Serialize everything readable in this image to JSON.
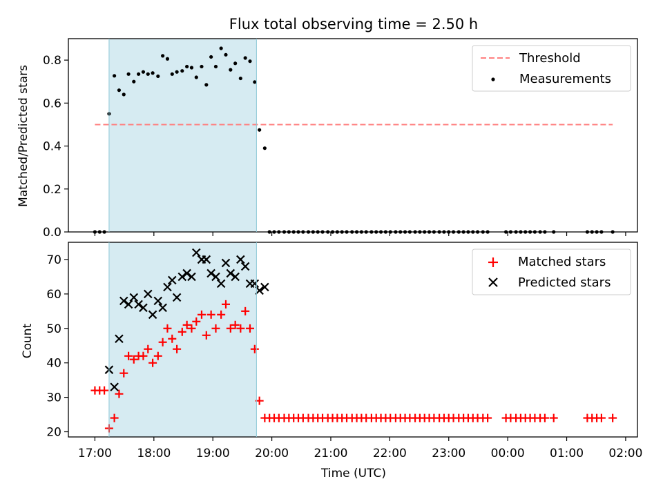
{
  "figure": {
    "title": "Flux total observing time = 2.50 h",
    "xlabel": "Time (UTC)",
    "top_ylabel": "Matched/Predicted stars",
    "bottom_ylabel": "Count",
    "highlight_color": "#add8e6",
    "x_tick_labels": [
      "17:00",
      "18:00",
      "19:00",
      "20:00",
      "21:00",
      "22:00",
      "23:00",
      "00:00",
      "01:00",
      "02:00"
    ]
  },
  "chart_data": [
    {
      "type": "scatter",
      "ylabel": "Matched/Predicted stars",
      "x_unit": "hours since 17:00 UTC",
      "xlim": [
        -0.45,
        9.2
      ],
      "ylim": [
        0,
        0.9
      ],
      "yticks": [
        0.0,
        0.2,
        0.4,
        0.6,
        0.8
      ],
      "ytick_labels": [
        "0.0",
        "0.2",
        "0.4",
        "0.6",
        "0.8"
      ],
      "highlight_span": [
        0.24,
        2.74
      ],
      "threshold": {
        "name": "Threshold",
        "y": 0.5,
        "x_range": [
          0.0,
          8.78
        ],
        "color": "#ff7f7f",
        "style": "dashed"
      },
      "legend": {
        "position": "top-right",
        "entries": [
          "Threshold",
          "Measurements"
        ]
      },
      "series": [
        {
          "name": "Measurements",
          "color": "#000000",
          "points": [
            [
              0.0,
              0.0
            ],
            [
              0.08,
              0.0
            ],
            [
              0.16,
              0.0
            ],
            [
              0.24,
              0.55
            ],
            [
              0.33,
              0.727
            ],
            [
              0.41,
              0.66
            ],
            [
              0.49,
              0.64
            ],
            [
              0.57,
              0.735
            ],
            [
              0.66,
              0.7
            ],
            [
              0.74,
              0.735
            ],
            [
              0.82,
              0.745
            ],
            [
              0.9,
              0.735
            ],
            [
              0.98,
              0.74
            ],
            [
              1.07,
              0.725
            ],
            [
              1.15,
              0.82
            ],
            [
              1.23,
              0.806
            ],
            [
              1.31,
              0.735
            ],
            [
              1.39,
              0.745
            ],
            [
              1.48,
              0.75
            ],
            [
              1.56,
              0.77
            ],
            [
              1.64,
              0.765
            ],
            [
              1.72,
              0.72
            ],
            [
              1.81,
              0.77
            ],
            [
              1.89,
              0.685
            ],
            [
              1.97,
              0.815
            ],
            [
              2.05,
              0.77
            ],
            [
              2.14,
              0.855
            ],
            [
              2.22,
              0.825
            ],
            [
              2.3,
              0.755
            ],
            [
              2.38,
              0.785
            ],
            [
              2.47,
              0.715
            ],
            [
              2.55,
              0.81
            ],
            [
              2.63,
              0.795
            ],
            [
              2.71,
              0.698
            ],
            [
              2.79,
              0.475
            ],
            [
              2.88,
              0.39
            ],
            [
              2.96,
              0.0
            ],
            [
              3.04,
              0.0
            ],
            [
              3.12,
              0.0
            ],
            [
              3.21,
              0.0
            ],
            [
              3.29,
              0.0
            ],
            [
              3.37,
              0.0
            ],
            [
              3.45,
              0.0
            ],
            [
              3.53,
              0.0
            ],
            [
              3.62,
              0.0
            ],
            [
              3.7,
              0.0
            ],
            [
              3.78,
              0.0
            ],
            [
              3.86,
              0.0
            ],
            [
              3.95,
              0.0
            ],
            [
              4.03,
              0.0
            ],
            [
              4.11,
              0.0
            ],
            [
              4.19,
              0.0
            ],
            [
              4.27,
              0.0
            ],
            [
              4.36,
              0.0
            ],
            [
              4.44,
              0.0
            ],
            [
              4.52,
              0.0
            ],
            [
              4.6,
              0.0
            ],
            [
              4.69,
              0.0
            ],
            [
              4.77,
              0.0
            ],
            [
              4.85,
              0.0
            ],
            [
              4.93,
              0.0
            ],
            [
              5.01,
              0.0
            ],
            [
              5.1,
              0.0
            ],
            [
              5.18,
              0.0
            ],
            [
              5.26,
              0.0
            ],
            [
              5.34,
              0.0
            ],
            [
              5.43,
              0.0
            ],
            [
              5.51,
              0.0
            ],
            [
              5.59,
              0.0
            ],
            [
              5.67,
              0.0
            ],
            [
              5.75,
              0.0
            ],
            [
              5.84,
              0.0
            ],
            [
              5.92,
              0.0
            ],
            [
              6.0,
              0.0
            ],
            [
              6.08,
              0.0
            ],
            [
              6.17,
              0.0
            ],
            [
              6.25,
              0.0
            ],
            [
              6.33,
              0.0
            ],
            [
              6.41,
              0.0
            ],
            [
              6.49,
              0.0
            ],
            [
              6.58,
              0.0
            ],
            [
              6.66,
              0.0
            ],
            [
              6.97,
              0.0
            ],
            [
              7.05,
              0.0
            ],
            [
              7.14,
              0.0
            ],
            [
              7.22,
              0.0
            ],
            [
              7.3,
              0.0
            ],
            [
              7.38,
              0.0
            ],
            [
              7.46,
              0.0
            ],
            [
              7.55,
              0.0
            ],
            [
              7.63,
              0.0
            ],
            [
              7.78,
              0.0
            ],
            [
              8.35,
              0.0
            ],
            [
              8.43,
              0.0
            ],
            [
              8.51,
              0.0
            ],
            [
              8.59,
              0.0
            ],
            [
              8.78,
              0.0
            ]
          ]
        }
      ]
    },
    {
      "type": "scatter",
      "xlabel": "Time (UTC)",
      "ylabel": "Count",
      "x_unit": "hours since 17:00 UTC",
      "xlim": [
        -0.45,
        9.2
      ],
      "ylim": [
        18.5,
        75
      ],
      "yticks": [
        20,
        30,
        40,
        50,
        60,
        70
      ],
      "ytick_labels": [
        "20",
        "30",
        "40",
        "50",
        "60",
        "70"
      ],
      "xticks": [
        0,
        1,
        2,
        3,
        4,
        5,
        6,
        7,
        8,
        9
      ],
      "xtick_labels": [
        "17:00",
        "18:00",
        "19:00",
        "20:00",
        "21:00",
        "22:00",
        "23:00",
        "00:00",
        "01:00",
        "02:00"
      ],
      "highlight_span": [
        0.24,
        2.74
      ],
      "legend": {
        "position": "top-right",
        "entries": [
          "Matched stars",
          "Predicted stars"
        ]
      },
      "series": [
        {
          "name": "Matched stars",
          "marker": "plus",
          "color": "#ff0000",
          "points": [
            [
              0.0,
              32
            ],
            [
              0.08,
              32
            ],
            [
              0.16,
              32
            ],
            [
              0.24,
              21
            ],
            [
              0.33,
              24
            ],
            [
              0.41,
              31
            ],
            [
              0.49,
              37
            ],
            [
              0.57,
              42
            ],
            [
              0.66,
              41
            ],
            [
              0.74,
              42
            ],
            [
              0.82,
              42
            ],
            [
              0.9,
              44
            ],
            [
              0.98,
              40
            ],
            [
              1.07,
              42
            ],
            [
              1.15,
              46
            ],
            [
              1.23,
              50
            ],
            [
              1.31,
              47
            ],
            [
              1.39,
              44
            ],
            [
              1.48,
              49
            ],
            [
              1.56,
              51
            ],
            [
              1.64,
              50
            ],
            [
              1.72,
              52
            ],
            [
              1.81,
              54
            ],
            [
              1.89,
              48
            ],
            [
              1.97,
              54
            ],
            [
              2.05,
              50
            ],
            [
              2.14,
              54
            ],
            [
              2.22,
              57
            ],
            [
              2.3,
              50
            ],
            [
              2.38,
              51
            ],
            [
              2.47,
              50
            ],
            [
              2.55,
              55
            ],
            [
              2.63,
              50
            ],
            [
              2.71,
              44
            ],
            [
              2.79,
              29
            ],
            [
              2.88,
              24
            ],
            [
              2.96,
              24
            ],
            [
              3.04,
              24
            ],
            [
              3.12,
              24
            ],
            [
              3.21,
              24
            ],
            [
              3.29,
              24
            ],
            [
              3.37,
              24
            ],
            [
              3.45,
              24
            ],
            [
              3.53,
              24
            ],
            [
              3.62,
              24
            ],
            [
              3.7,
              24
            ],
            [
              3.78,
              24
            ],
            [
              3.86,
              24
            ],
            [
              3.95,
              24
            ],
            [
              4.03,
              24
            ],
            [
              4.11,
              24
            ],
            [
              4.19,
              24
            ],
            [
              4.27,
              24
            ],
            [
              4.36,
              24
            ],
            [
              4.44,
              24
            ],
            [
              4.52,
              24
            ],
            [
              4.6,
              24
            ],
            [
              4.69,
              24
            ],
            [
              4.77,
              24
            ],
            [
              4.85,
              24
            ],
            [
              4.93,
              24
            ],
            [
              5.01,
              24
            ],
            [
              5.1,
              24
            ],
            [
              5.18,
              24
            ],
            [
              5.26,
              24
            ],
            [
              5.34,
              24
            ],
            [
              5.43,
              24
            ],
            [
              5.51,
              24
            ],
            [
              5.59,
              24
            ],
            [
              5.67,
              24
            ],
            [
              5.75,
              24
            ],
            [
              5.84,
              24
            ],
            [
              5.92,
              24
            ],
            [
              6.0,
              24
            ],
            [
              6.08,
              24
            ],
            [
              6.17,
              24
            ],
            [
              6.25,
              24
            ],
            [
              6.33,
              24
            ],
            [
              6.41,
              24
            ],
            [
              6.49,
              24
            ],
            [
              6.58,
              24
            ],
            [
              6.66,
              24
            ],
            [
              6.97,
              24
            ],
            [
              7.05,
              24
            ],
            [
              7.14,
              24
            ],
            [
              7.22,
              24
            ],
            [
              7.3,
              24
            ],
            [
              7.38,
              24
            ],
            [
              7.46,
              24
            ],
            [
              7.55,
              24
            ],
            [
              7.63,
              24
            ],
            [
              7.78,
              24
            ],
            [
              8.35,
              24
            ],
            [
              8.43,
              24
            ],
            [
              8.51,
              24
            ],
            [
              8.59,
              24
            ],
            [
              8.78,
              24
            ]
          ]
        },
        {
          "name": "Predicted stars",
          "marker": "x",
          "color": "#000000",
          "points": [
            [
              0.24,
              38
            ],
            [
              0.33,
              33
            ],
            [
              0.41,
              47
            ],
            [
              0.49,
              58
            ],
            [
              0.57,
              57
            ],
            [
              0.66,
              59
            ],
            [
              0.74,
              57
            ],
            [
              0.82,
              56
            ],
            [
              0.9,
              60
            ],
            [
              0.98,
              54
            ],
            [
              1.07,
              58
            ],
            [
              1.15,
              56
            ],
            [
              1.23,
              62
            ],
            [
              1.31,
              64
            ],
            [
              1.39,
              59
            ],
            [
              1.48,
              65
            ],
            [
              1.56,
              66
            ],
            [
              1.64,
              65
            ],
            [
              1.72,
              72
            ],
            [
              1.81,
              70
            ],
            [
              1.89,
              70
            ],
            [
              1.97,
              66
            ],
            [
              2.05,
              65
            ],
            [
              2.14,
              63
            ],
            [
              2.22,
              69
            ],
            [
              2.3,
              66
            ],
            [
              2.38,
              65
            ],
            [
              2.47,
              70
            ],
            [
              2.55,
              68
            ],
            [
              2.63,
              63
            ],
            [
              2.71,
              63
            ],
            [
              2.79,
              61
            ],
            [
              2.88,
              62
            ]
          ]
        }
      ]
    }
  ]
}
